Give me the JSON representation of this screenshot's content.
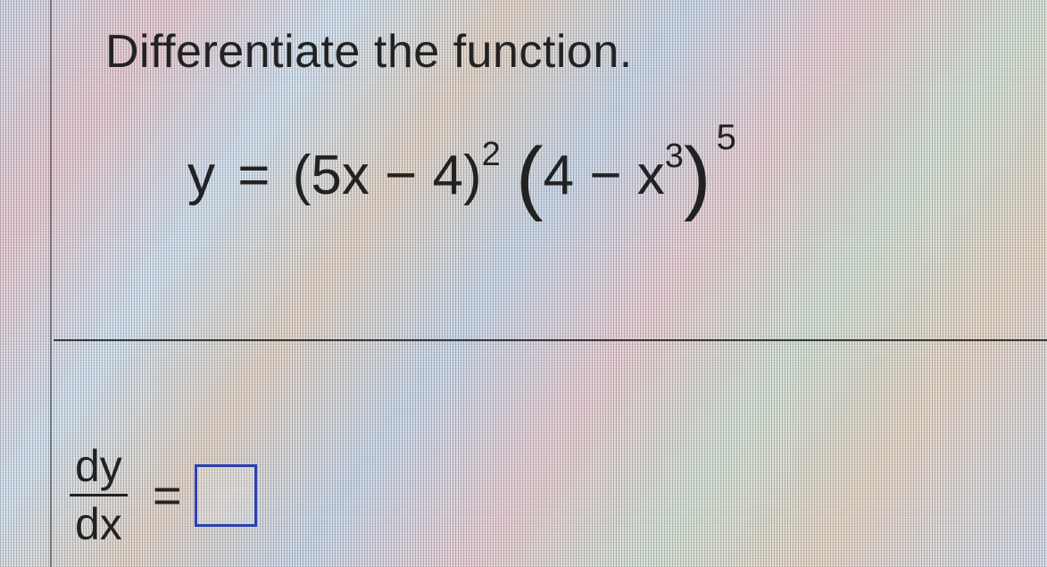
{
  "prompt": "Differentiate the function.",
  "equation": {
    "lhs": "y",
    "eq": "=",
    "factor1_open": "(",
    "factor1_inner": "5x − 4",
    "factor1_close": ")",
    "factor1_exp": "2",
    "factor2_open": "(",
    "factor2_a": "4 − x",
    "factor2_inner_exp": "3",
    "factor2_close": ")",
    "factor2_exp": "5"
  },
  "answer": {
    "frac_num": "dy",
    "frac_den": "dx",
    "eq": "=",
    "box_value": ""
  },
  "colors": {
    "text": "#1a1a1a",
    "rule": "#3a3a3a",
    "box_border": "#2a3fb0"
  }
}
